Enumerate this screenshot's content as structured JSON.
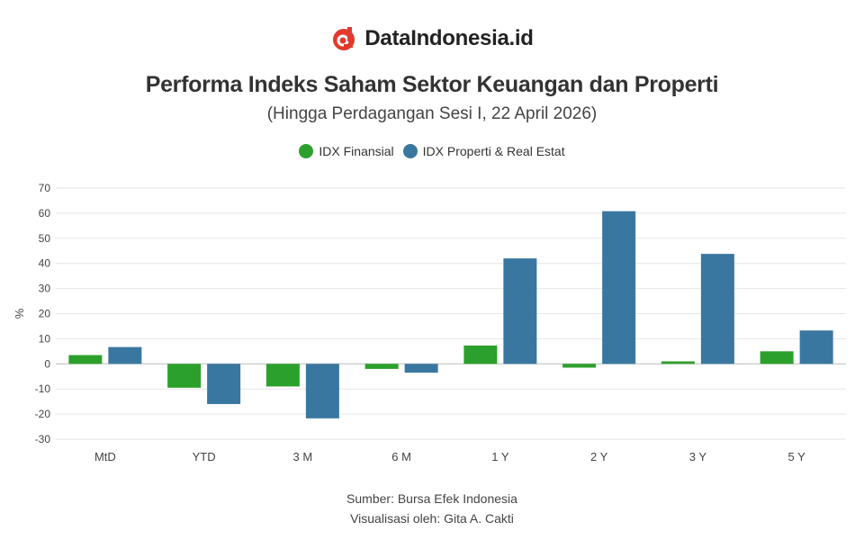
{
  "brand": {
    "name": "DataIndonesia.id",
    "logo_icon": "dataindonesia-logo-icon",
    "logo_color": "#e03a2f"
  },
  "chart_data": {
    "type": "bar",
    "title": "Performa Indeks Saham Sektor Keuangan dan Properti",
    "subtitle": "(Hingga Perdagangan Sesi I, 22 April 2026)",
    "xlabel": "",
    "ylabel": "%",
    "ylim": [
      -30,
      70
    ],
    "yticks": [
      70,
      60,
      50,
      40,
      30,
      20,
      10,
      0,
      -10,
      -20,
      -30
    ],
    "grid": true,
    "legend_position": "top-center",
    "categories": [
      "MtD",
      "YTD",
      "3 M",
      "6 M",
      "1 Y",
      "2 Y",
      "3 Y",
      "5 Y"
    ],
    "series": [
      {
        "name": "IDX Finansial",
        "color": "#2ca02c",
        "values": [
          3.5,
          -9.5,
          -9.0,
          -2.0,
          7.3,
          -1.5,
          1.0,
          5.0
        ]
      },
      {
        "name": "IDX Properti & Real Estat",
        "color": "#3a77a0",
        "values": [
          6.7,
          -16.0,
          -21.7,
          -3.5,
          42.0,
          60.8,
          43.8,
          13.3
        ]
      }
    ]
  },
  "footer": {
    "source": "Sumber: Bursa Efek Indonesia",
    "credit": "Visualisasi oleh: Gita A. Cakti"
  }
}
